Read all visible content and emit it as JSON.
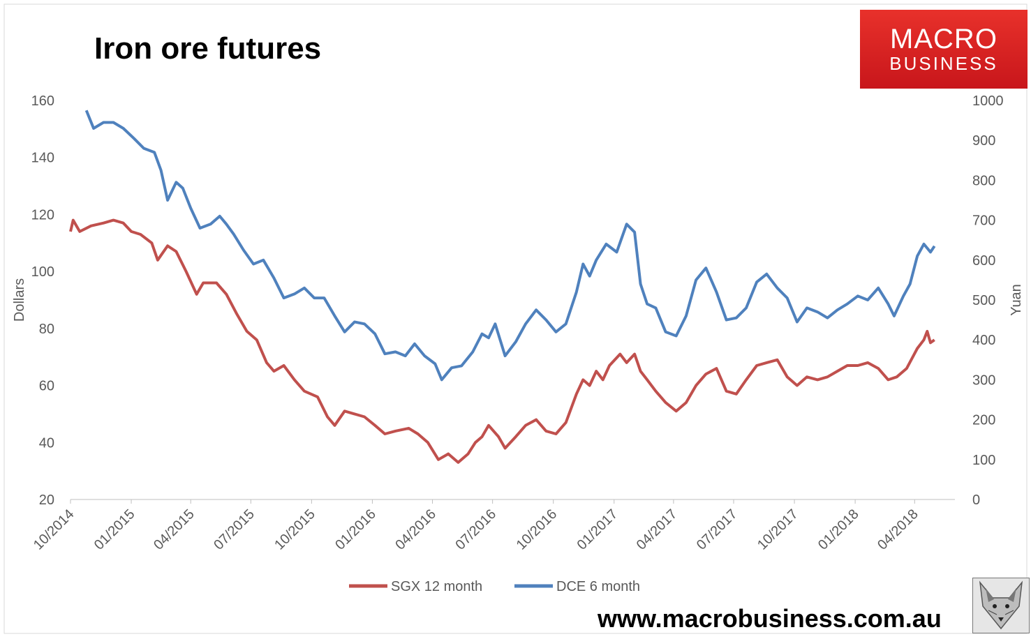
{
  "title": "Iron ore futures",
  "logo": {
    "line1": "MACRO",
    "line2": "BUSINESS"
  },
  "footer_url": "www.macrobusiness.com.au",
  "icons": {
    "logo": "macrobusiness-logo",
    "mascot": "wolf-mascot-icon"
  },
  "colors": {
    "sgx": "#c0504d",
    "dce": "#4f81bd",
    "logo_bg": "#d7261f"
  },
  "chart_data": {
    "type": "line",
    "title": "Iron ore futures",
    "xlabel": "",
    "ylabel_left": "Dollars",
    "ylabel_right": "Yuan",
    "ylim_left": [
      20,
      160
    ],
    "ylim_right": [
      0,
      1000
    ],
    "yticks_left": [
      20,
      40,
      60,
      80,
      100,
      120,
      140,
      160
    ],
    "yticks_right": [
      0,
      100,
      200,
      300,
      400,
      500,
      600,
      700,
      800,
      900,
      1000
    ],
    "x_ticks": [
      "10/2014",
      "01/2015",
      "04/2015",
      "07/2015",
      "10/2015",
      "01/2016",
      "04/2016",
      "07/2016",
      "10/2016",
      "01/2017",
      "04/2017",
      "07/2017",
      "10/2017",
      "01/2018",
      "04/2018"
    ],
    "x_range": [
      "2014-10-01",
      "2018-06-01"
    ],
    "grid": false,
    "legend_position": "bottom",
    "series": [
      {
        "name": "SGX 12 month",
        "axis": "left",
        "points": [
          [
            "2014-10-01",
            114
          ],
          [
            "2014-10-05",
            118
          ],
          [
            "2014-10-15",
            114
          ],
          [
            "2014-11-01",
            116
          ],
          [
            "2014-11-20",
            117
          ],
          [
            "2014-12-05",
            118
          ],
          [
            "2014-12-20",
            117
          ],
          [
            "2015-01-01",
            114
          ],
          [
            "2015-01-15",
            113
          ],
          [
            "2015-02-01",
            110
          ],
          [
            "2015-02-10",
            104
          ],
          [
            "2015-02-25",
            109
          ],
          [
            "2015-03-10",
            107
          ],
          [
            "2015-03-25",
            100
          ],
          [
            "2015-04-10",
            92
          ],
          [
            "2015-04-20",
            96
          ],
          [
            "2015-05-10",
            96
          ],
          [
            "2015-05-25",
            92
          ],
          [
            "2015-06-10",
            85
          ],
          [
            "2015-06-25",
            79
          ],
          [
            "2015-07-10",
            76
          ],
          [
            "2015-07-25",
            68
          ],
          [
            "2015-08-05",
            65
          ],
          [
            "2015-08-20",
            67
          ],
          [
            "2015-09-05",
            62
          ],
          [
            "2015-09-20",
            58
          ],
          [
            "2015-10-10",
            56
          ],
          [
            "2015-10-25",
            49
          ],
          [
            "2015-11-05",
            46
          ],
          [
            "2015-11-20",
            51
          ],
          [
            "2015-12-05",
            50
          ],
          [
            "2015-12-20",
            49
          ],
          [
            "2016-01-05",
            46
          ],
          [
            "2016-01-20",
            43
          ],
          [
            "2016-02-05",
            44
          ],
          [
            "2016-02-25",
            45
          ],
          [
            "2016-03-10",
            43
          ],
          [
            "2016-03-25",
            40
          ],
          [
            "2016-04-10",
            34
          ],
          [
            "2016-04-25",
            36
          ],
          [
            "2016-05-10",
            33
          ],
          [
            "2016-05-25",
            36
          ],
          [
            "2016-06-05",
            40
          ],
          [
            "2016-06-15",
            42
          ],
          [
            "2016-06-25",
            46
          ],
          [
            "2016-07-10",
            42
          ],
          [
            "2016-07-20",
            38
          ],
          [
            "2016-08-05",
            42
          ],
          [
            "2016-08-20",
            46
          ],
          [
            "2016-09-05",
            48
          ],
          [
            "2016-09-20",
            44
          ],
          [
            "2016-10-05",
            43
          ],
          [
            "2016-10-20",
            47
          ],
          [
            "2016-11-05",
            57
          ],
          [
            "2016-11-15",
            62
          ],
          [
            "2016-11-25",
            60
          ],
          [
            "2016-12-05",
            65
          ],
          [
            "2016-12-15",
            62
          ],
          [
            "2016-12-25",
            67
          ],
          [
            "2017-01-10",
            71
          ],
          [
            "2017-01-20",
            68
          ],
          [
            "2017-02-01",
            71
          ],
          [
            "2017-02-10",
            65
          ],
          [
            "2017-02-20",
            62
          ],
          [
            "2017-03-05",
            58
          ],
          [
            "2017-03-20",
            54
          ],
          [
            "2017-04-05",
            51
          ],
          [
            "2017-04-20",
            54
          ],
          [
            "2017-05-05",
            60
          ],
          [
            "2017-05-20",
            64
          ],
          [
            "2017-06-05",
            66
          ],
          [
            "2017-06-20",
            58
          ],
          [
            "2017-07-05",
            57
          ],
          [
            "2017-07-20",
            62
          ],
          [
            "2017-08-05",
            67
          ],
          [
            "2017-08-20",
            68
          ],
          [
            "2017-09-05",
            69
          ],
          [
            "2017-09-20",
            63
          ],
          [
            "2017-10-05",
            60
          ],
          [
            "2017-10-20",
            63
          ],
          [
            "2017-11-05",
            62
          ],
          [
            "2017-11-20",
            63
          ],
          [
            "2017-12-05",
            65
          ],
          [
            "2017-12-20",
            67
          ],
          [
            "2018-01-05",
            67
          ],
          [
            "2018-01-20",
            68
          ],
          [
            "2018-02-05",
            66
          ],
          [
            "2018-02-20",
            62
          ],
          [
            "2018-03-05",
            63
          ],
          [
            "2018-03-20",
            66
          ],
          [
            "2018-04-05",
            73
          ],
          [
            "2018-04-15",
            76
          ],
          [
            "2018-04-20",
            79
          ],
          [
            "2018-04-25",
            75
          ],
          [
            "2018-05-01",
            76
          ]
        ]
      },
      {
        "name": "DCE 6 month",
        "axis": "right",
        "points": [
          [
            "2014-10-25",
            975
          ],
          [
            "2014-11-05",
            930
          ],
          [
            "2014-11-20",
            945
          ],
          [
            "2014-12-05",
            945
          ],
          [
            "2014-12-20",
            930
          ],
          [
            "2015-01-05",
            905
          ],
          [
            "2015-01-20",
            880
          ],
          [
            "2015-02-05",
            870
          ],
          [
            "2015-02-15",
            825
          ],
          [
            "2015-02-25",
            750
          ],
          [
            "2015-03-10",
            795
          ],
          [
            "2015-03-20",
            780
          ],
          [
            "2015-04-01",
            730
          ],
          [
            "2015-04-15",
            680
          ],
          [
            "2015-05-01",
            690
          ],
          [
            "2015-05-15",
            710
          ],
          [
            "2015-05-25",
            690
          ],
          [
            "2015-06-05",
            665
          ],
          [
            "2015-06-20",
            625
          ],
          [
            "2015-07-05",
            590
          ],
          [
            "2015-07-20",
            600
          ],
          [
            "2015-08-05",
            555
          ],
          [
            "2015-08-20",
            505
          ],
          [
            "2015-09-05",
            515
          ],
          [
            "2015-09-20",
            530
          ],
          [
            "2015-10-05",
            505
          ],
          [
            "2015-10-20",
            505
          ],
          [
            "2015-11-05",
            460
          ],
          [
            "2015-11-20",
            420
          ],
          [
            "2015-12-05",
            445
          ],
          [
            "2015-12-20",
            440
          ],
          [
            "2016-01-05",
            415
          ],
          [
            "2016-01-20",
            365
          ],
          [
            "2016-02-05",
            370
          ],
          [
            "2016-02-20",
            360
          ],
          [
            "2016-03-05",
            390
          ],
          [
            "2016-03-20",
            360
          ],
          [
            "2016-04-05",
            340
          ],
          [
            "2016-04-15",
            300
          ],
          [
            "2016-04-30",
            330
          ],
          [
            "2016-05-15",
            335
          ],
          [
            "2016-06-01",
            370
          ],
          [
            "2016-06-15",
            415
          ],
          [
            "2016-06-25",
            405
          ],
          [
            "2016-07-05",
            440
          ],
          [
            "2016-07-20",
            360
          ],
          [
            "2016-08-05",
            395
          ],
          [
            "2016-08-20",
            440
          ],
          [
            "2016-09-05",
            475
          ],
          [
            "2016-09-20",
            450
          ],
          [
            "2016-10-05",
            420
          ],
          [
            "2016-10-20",
            440
          ],
          [
            "2016-11-05",
            520
          ],
          [
            "2016-11-15",
            590
          ],
          [
            "2016-11-25",
            560
          ],
          [
            "2016-12-05",
            600
          ],
          [
            "2016-12-20",
            640
          ],
          [
            "2017-01-05",
            620
          ],
          [
            "2017-01-20",
            690
          ],
          [
            "2017-02-01",
            670
          ],
          [
            "2017-02-10",
            540
          ],
          [
            "2017-02-20",
            490
          ],
          [
            "2017-03-05",
            480
          ],
          [
            "2017-03-20",
            420
          ],
          [
            "2017-04-05",
            410
          ],
          [
            "2017-04-20",
            460
          ],
          [
            "2017-05-05",
            550
          ],
          [
            "2017-05-20",
            580
          ],
          [
            "2017-06-05",
            520
          ],
          [
            "2017-06-20",
            450
          ],
          [
            "2017-07-05",
            455
          ],
          [
            "2017-07-20",
            480
          ],
          [
            "2017-08-05",
            545
          ],
          [
            "2017-08-20",
            565
          ],
          [
            "2017-09-05",
            530
          ],
          [
            "2017-09-20",
            505
          ],
          [
            "2017-10-05",
            445
          ],
          [
            "2017-10-20",
            480
          ],
          [
            "2017-11-05",
            470
          ],
          [
            "2017-11-20",
            455
          ],
          [
            "2017-12-05",
            475
          ],
          [
            "2017-12-20",
            490
          ],
          [
            "2018-01-05",
            510
          ],
          [
            "2018-01-20",
            500
          ],
          [
            "2018-02-05",
            530
          ],
          [
            "2018-02-20",
            490
          ],
          [
            "2018-03-01",
            460
          ],
          [
            "2018-03-15",
            510
          ],
          [
            "2018-03-25",
            540
          ],
          [
            "2018-04-05",
            610
          ],
          [
            "2018-04-15",
            640
          ],
          [
            "2018-04-25",
            620
          ],
          [
            "2018-05-01",
            635
          ]
        ]
      }
    ]
  }
}
